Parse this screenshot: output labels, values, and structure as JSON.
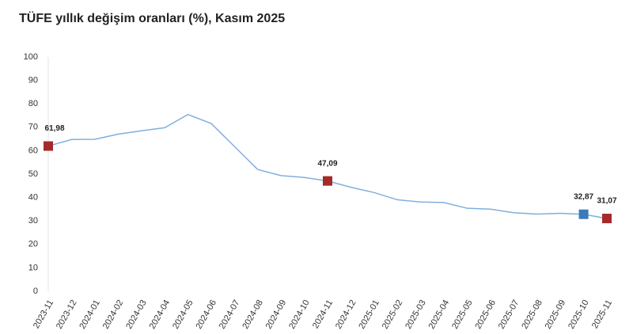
{
  "chart_data": {
    "type": "line",
    "title": "TÜFE yıllık değişim oranları (%), Kasım 2025",
    "categories": [
      "2023-11",
      "2023-12",
      "2024-01",
      "2024-02",
      "2024-03",
      "2024-04",
      "2024-05",
      "2024-06",
      "2024-07",
      "2024-08",
      "2024-09",
      "2024-10",
      "2024-11",
      "2024-12",
      "2025-01",
      "2025-02",
      "2025-03",
      "2025-04",
      "2025-05",
      "2025-06",
      "2025-07",
      "2025-08",
      "2025-09",
      "2025-10",
      "2025-11"
    ],
    "values": [
      61.98,
      64.77,
      64.86,
      67.07,
      68.5,
      69.8,
      75.45,
      71.6,
      61.78,
      51.97,
      49.38,
      48.58,
      47.09,
      44.38,
      42.12,
      39.05,
      38.1,
      37.86,
      35.41,
      35.05,
      33.52,
      32.95,
      33.29,
      32.87,
      31.07
    ],
    "value_labels": [
      "61,98",
      null,
      null,
      null,
      null,
      null,
      null,
      null,
      null,
      null,
      null,
      null,
      "47,09",
      null,
      null,
      null,
      null,
      null,
      null,
      null,
      null,
      null,
      null,
      "32,87",
      "31,07"
    ],
    "marker_colors": [
      "#a52a2a",
      null,
      null,
      null,
      null,
      null,
      null,
      null,
      null,
      null,
      null,
      null,
      "#a52a2a",
      null,
      null,
      null,
      null,
      null,
      null,
      null,
      null,
      null,
      null,
      "#3d7ab8",
      "#a52a2a"
    ],
    "color": "#7fb0dd",
    "ylim": [
      0,
      100
    ],
    "yticks": [
      0,
      10,
      20,
      30,
      40,
      50,
      60,
      70,
      80,
      90,
      100
    ],
    "grid": false
  }
}
